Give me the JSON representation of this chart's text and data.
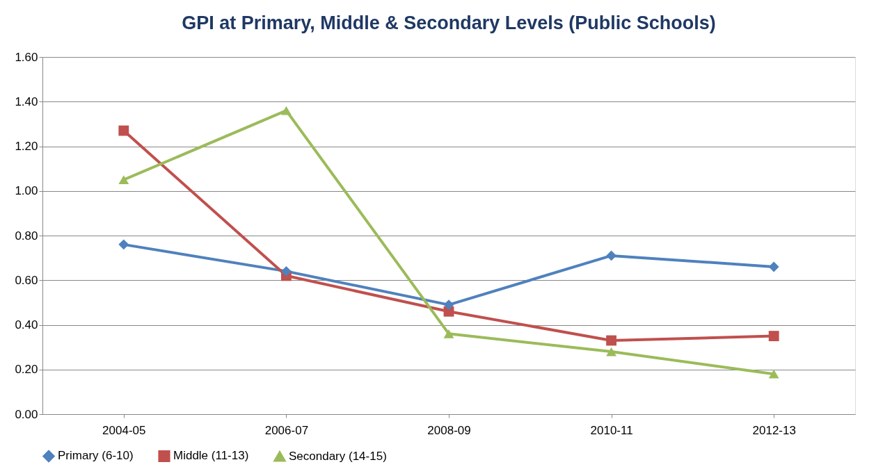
{
  "chart_data": {
    "type": "line",
    "title": "GPI at Primary, Middle & Secondary Levels (Public Schools)",
    "categories": [
      "2004-05",
      "2006-07",
      "2008-09",
      "2010-11",
      "2012-13"
    ],
    "series": [
      {
        "name": "Primary (6-10)",
        "color": "#4f81bd",
        "marker": "diamond",
        "values": [
          0.76,
          0.64,
          0.49,
          0.71,
          0.66
        ]
      },
      {
        "name": "Middle (11-13)",
        "color": "#c0504d",
        "marker": "square",
        "values": [
          1.27,
          0.62,
          0.46,
          0.33,
          0.35
        ]
      },
      {
        "name": "Secondary (14-15)",
        "color": "#9bbb59",
        "marker": "triangle",
        "values": [
          1.05,
          1.36,
          0.36,
          0.28,
          0.18
        ]
      }
    ],
    "ylim": [
      0,
      1.6
    ],
    "yticks": [
      {
        "value": 0,
        "label": "0.00"
      },
      {
        "value": 0.2,
        "label": "0.20"
      },
      {
        "value": 0.4,
        "label": "0.40"
      },
      {
        "value": 0.6,
        "label": "0.60"
      },
      {
        "value": 0.8,
        "label": "0.80"
      },
      {
        "value": 1.0,
        "label": "1.00"
      },
      {
        "value": 1.2,
        "label": "1.20"
      },
      {
        "value": 1.4,
        "label": "1.40"
      },
      {
        "value": 1.6,
        "label": "1.60"
      }
    ],
    "grid": "y",
    "legend": "bottom",
    "line_style": "solid"
  }
}
